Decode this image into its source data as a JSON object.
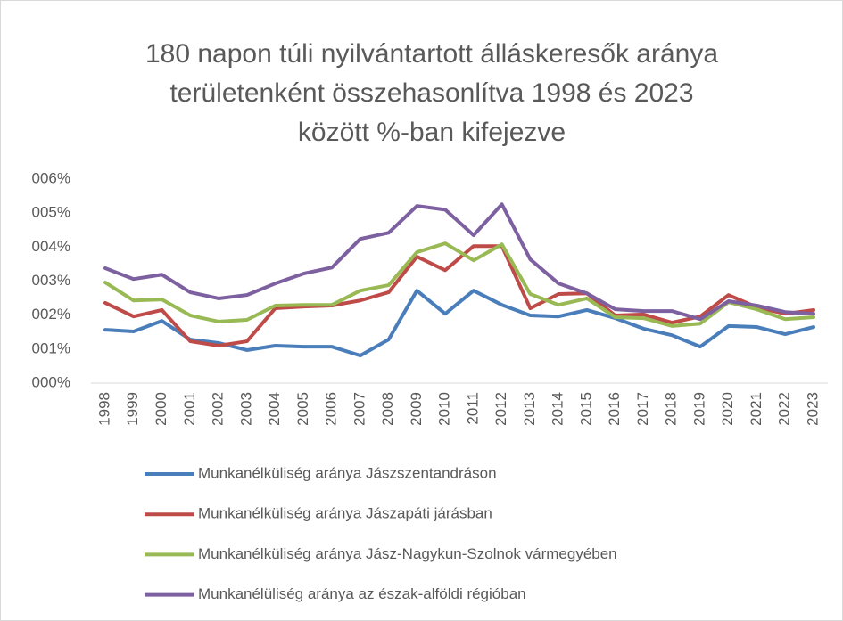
{
  "chart_data": {
    "type": "line",
    "title": [
      "180 napon túli nyilvántartott álláskeresők aránya",
      "területenként összehasonlítva 1998 és 2023",
      "között %-ban kifejezve"
    ],
    "categories": [
      "1998",
      "1999",
      "2000",
      "2001",
      "2002",
      "2003",
      "2004",
      "2005",
      "2006",
      "2007",
      "2008",
      "2009",
      "2010",
      "2011",
      "2012",
      "2013",
      "2014",
      "2015",
      "2016",
      "2017",
      "2018",
      "2019",
      "2020",
      "2021",
      "2022",
      "2023"
    ],
    "ylim": [
      0,
      6
    ],
    "yticks": [
      {
        "value": 0,
        "label": "000%"
      },
      {
        "value": 1,
        "label": "001%"
      },
      {
        "value": 2,
        "label": "002%"
      },
      {
        "value": 3,
        "label": "003%"
      },
      {
        "value": 4,
        "label": "004%"
      },
      {
        "value": 5,
        "label": "005%"
      },
      {
        "value": 6,
        "label": "006%"
      }
    ],
    "grid": false,
    "legend": "bottom",
    "series": [
      {
        "name": "Munkanélküliség aránya Jászszentandráson",
        "color": "#4a7ebb",
        "values": [
          1.57,
          1.52,
          1.83,
          1.28,
          1.18,
          0.97,
          1.1,
          1.07,
          1.07,
          0.81,
          1.28,
          2.72,
          2.04,
          2.72,
          2.3,
          1.99,
          1.96,
          2.15,
          1.91,
          1.6,
          1.41,
          1.07,
          1.68,
          1.65,
          1.44,
          1.65
        ]
      },
      {
        "name": "Munkanélküliség aránya Jászapáti járásban",
        "color": "#be4b48",
        "values": [
          2.36,
          1.96,
          2.15,
          1.23,
          1.1,
          1.23,
          2.2,
          2.25,
          2.28,
          2.43,
          2.67,
          3.72,
          3.32,
          4.03,
          4.03,
          2.2,
          2.62,
          2.64,
          1.99,
          2.02,
          1.78,
          1.96,
          2.59,
          2.23,
          2.04,
          2.15
        ]
      },
      {
        "name": "Munkanélküliség aránya Jász-Nagykun-Szolnok vármegyében",
        "color": "#98b954",
        "values": [
          2.96,
          2.43,
          2.46,
          1.99,
          1.81,
          1.86,
          2.28,
          2.3,
          2.3,
          2.72,
          2.88,
          3.85,
          4.11,
          3.61,
          4.08,
          2.62,
          2.3,
          2.49,
          1.94,
          1.91,
          1.68,
          1.75,
          2.38,
          2.17,
          1.88,
          1.94
        ]
      },
      {
        "name": "Munkanélüliség aránya az észak-alföldi régióban",
        "color": "#7d60a0",
        "values": [
          3.38,
          3.06,
          3.19,
          2.67,
          2.49,
          2.59,
          2.93,
          3.22,
          3.4,
          4.24,
          4.42,
          5.21,
          5.1,
          4.35,
          5.26,
          3.64,
          2.93,
          2.64,
          2.17,
          2.12,
          2.12,
          1.88,
          2.41,
          2.28,
          2.09,
          2.04
        ]
      }
    ]
  }
}
